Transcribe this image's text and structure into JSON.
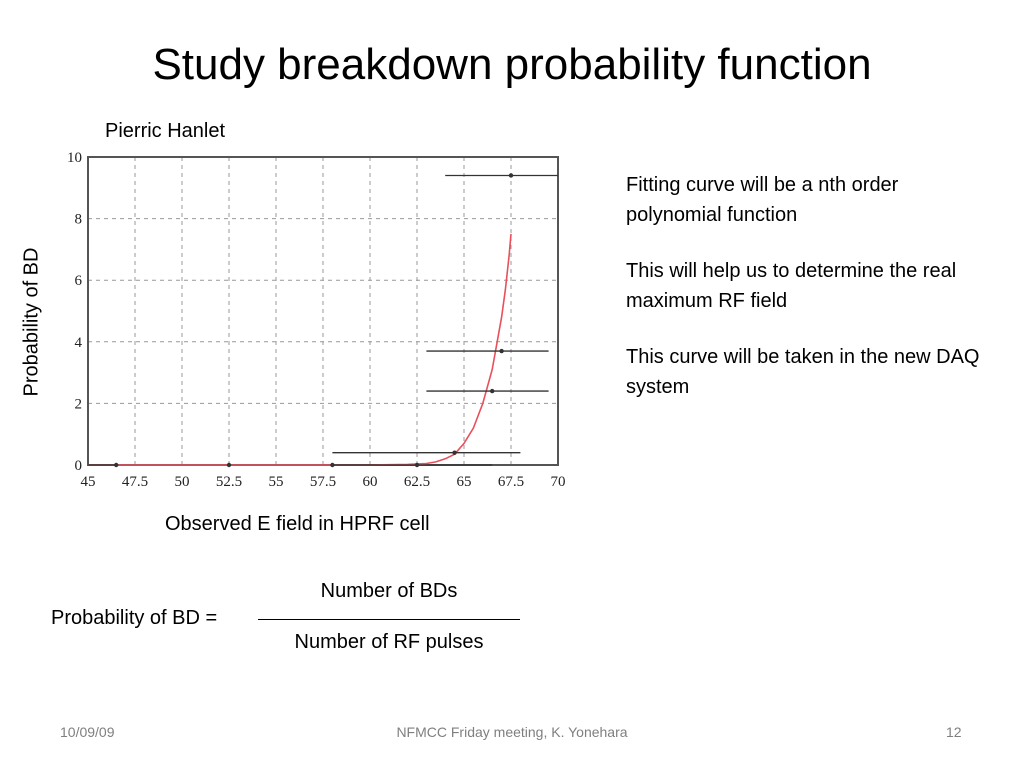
{
  "slide": {
    "title": "Study breakdown probability function",
    "author": "Pierric Hanlet",
    "bullets": [
      "Fitting curve will be a nth order polynomial function",
      "This will help us to determine the real maximum RF field",
      "This curve will be taken in the new DAQ system"
    ],
    "formula": {
      "lhs": "Probability of BD =",
      "numerator": "Number of BDs",
      "denominator": "Number of RF pulses"
    },
    "footer": {
      "date": "10/09/09",
      "center": "NFMCC Friday meeting, K. Yonehara",
      "page": "12"
    }
  },
  "chart_data": {
    "type": "scatter",
    "xlabel": "Observed E field in HPRF cell",
    "ylabel": "Probability of BD",
    "xlim": [
      45,
      70
    ],
    "ylim": [
      0,
      10
    ],
    "x_ticks": [
      "45",
      "47.5",
      "50",
      "52.5",
      "55",
      "57.5",
      "60",
      "62.5",
      "65",
      "67.5",
      "70"
    ],
    "y_ticks": [
      "0",
      "2",
      "4",
      "6",
      "8",
      "10"
    ],
    "grid": true,
    "colors": {
      "points": "#333333",
      "fit": "#e8505b",
      "grid": "#999999",
      "axis": "#555555"
    },
    "points": [
      {
        "x": 46.5,
        "y": 0.0,
        "xerr_low": 1.5,
        "xerr_high": 0.0
      },
      {
        "x": 52.5,
        "y": 0.0,
        "xerr_low": 0.0,
        "xerr_high": 0.0
      },
      {
        "x": 58.0,
        "y": 0.0,
        "xerr_low": 0.0,
        "xerr_high": 0.0
      },
      {
        "x": 62.5,
        "y": 0.0,
        "xerr_low": 4.5,
        "xerr_high": 4.0
      },
      {
        "x": 64.5,
        "y": 0.4,
        "xerr_low": 6.5,
        "xerr_high": 3.5
      },
      {
        "x": 66.5,
        "y": 2.4,
        "xerr_low": 3.5,
        "xerr_high": 3.0
      },
      {
        "x": 67.0,
        "y": 3.7,
        "xerr_low": 4.0,
        "xerr_high": 2.5
      },
      {
        "x": 67.5,
        "y": 9.4,
        "xerr_low": 3.5,
        "xerr_high": 2.5
      }
    ],
    "fit_curve": {
      "x": [
        45,
        55,
        60,
        62,
        63,
        63.5,
        64,
        64.5,
        65,
        65.5,
        66,
        66.5,
        67,
        67.2,
        67.4,
        67.5
      ],
      "y": [
        0,
        0,
        0,
        0.02,
        0.05,
        0.1,
        0.2,
        0.35,
        0.7,
        1.2,
        2.0,
        3.1,
        4.8,
        5.7,
        6.8,
        7.5
      ]
    }
  }
}
